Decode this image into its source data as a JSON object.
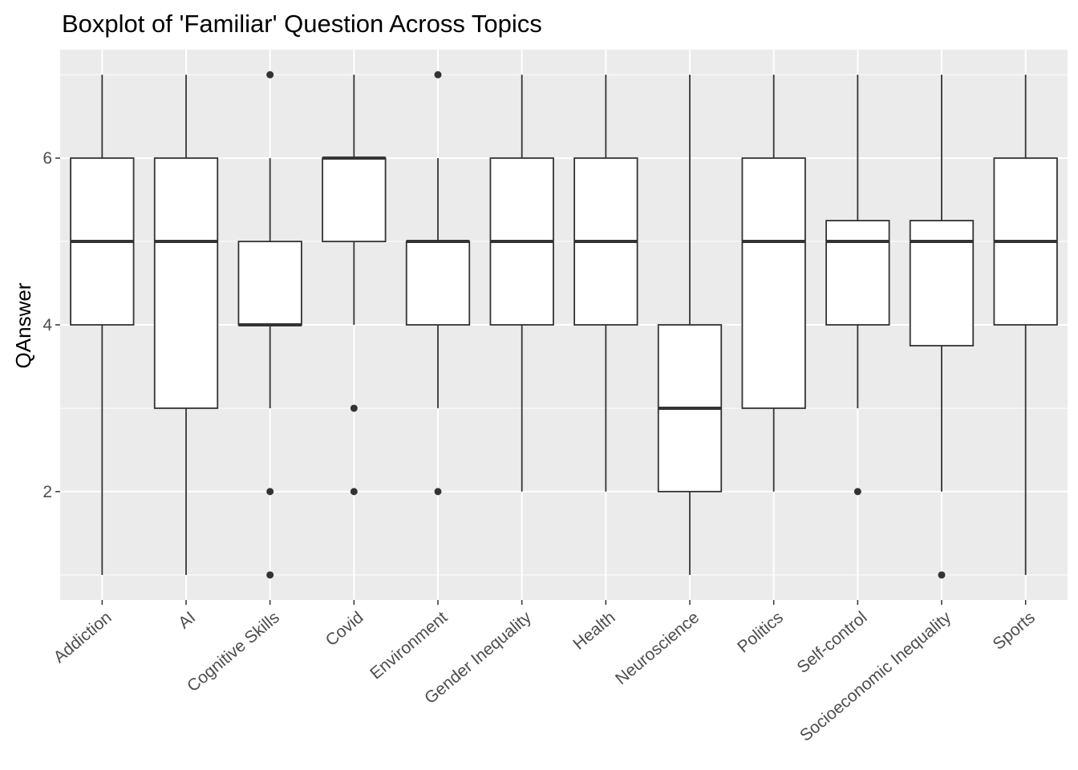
{
  "chart_data": {
    "type": "boxplot",
    "title": "Boxplot of 'Familiar' Question Across Topics",
    "xlabel": "",
    "ylabel": "QAnswer",
    "ylim": [
      0.7,
      7.3
    ],
    "yticks": [
      2,
      4,
      6
    ],
    "grid": true,
    "legend": "none",
    "colors": {
      "panel_background": "#ebebeb",
      "grid_major": "#ffffff",
      "box_fill": "#ffffff",
      "box_line": "#333333",
      "tick_text": "#4d4d4d"
    },
    "categories": [
      "Addiction",
      "AI",
      "Cognitive Skills",
      "Covid",
      "Environment",
      "Gender Inequality",
      "Health",
      "Neuroscience",
      "Politics",
      "Self-control",
      "Socioeconomic Inequality",
      "Sports"
    ],
    "boxes": [
      {
        "category": "Addiction",
        "whisker_low": 1,
        "q1": 4,
        "median": 5,
        "q3": 6,
        "whisker_high": 7,
        "outliers": []
      },
      {
        "category": "AI",
        "whisker_low": 1,
        "q1": 3,
        "median": 5,
        "q3": 6,
        "whisker_high": 7,
        "outliers": []
      },
      {
        "category": "Cognitive Skills",
        "whisker_low": 3,
        "q1": 4,
        "median": 4,
        "q3": 5,
        "whisker_high": 6,
        "outliers": [
          7,
          2,
          1
        ]
      },
      {
        "category": "Covid",
        "whisker_low": 4,
        "q1": 5,
        "median": 6,
        "q3": 6,
        "whisker_high": 7,
        "outliers": [
          3,
          2
        ]
      },
      {
        "category": "Environment",
        "whisker_low": 3,
        "q1": 4,
        "median": 5,
        "q3": 5,
        "whisker_high": 6,
        "outliers": [
          7,
          2
        ]
      },
      {
        "category": "Gender Inequality",
        "whisker_low": 2,
        "q1": 4,
        "median": 5,
        "q3": 6,
        "whisker_high": 7,
        "outliers": []
      },
      {
        "category": "Health",
        "whisker_low": 2,
        "q1": 4,
        "median": 5,
        "q3": 6,
        "whisker_high": 7,
        "outliers": []
      },
      {
        "category": "Neuroscience",
        "whisker_low": 1,
        "q1": 2,
        "median": 3,
        "q3": 4,
        "whisker_high": 7,
        "outliers": []
      },
      {
        "category": "Politics",
        "whisker_low": 2,
        "q1": 3,
        "median": 5,
        "q3": 6,
        "whisker_high": 7,
        "outliers": []
      },
      {
        "category": "Self-control",
        "whisker_low": 3,
        "q1": 4,
        "median": 5,
        "q3": 5.25,
        "whisker_high": 7,
        "outliers": [
          2
        ]
      },
      {
        "category": "Socioeconomic Inequality",
        "whisker_low": 2,
        "q1": 3.75,
        "median": 5,
        "q3": 5.25,
        "whisker_high": 7,
        "outliers": [
          1
        ]
      },
      {
        "category": "Sports",
        "whisker_low": 1,
        "q1": 4,
        "median": 5,
        "q3": 6,
        "whisker_high": 7,
        "outliers": []
      }
    ]
  }
}
